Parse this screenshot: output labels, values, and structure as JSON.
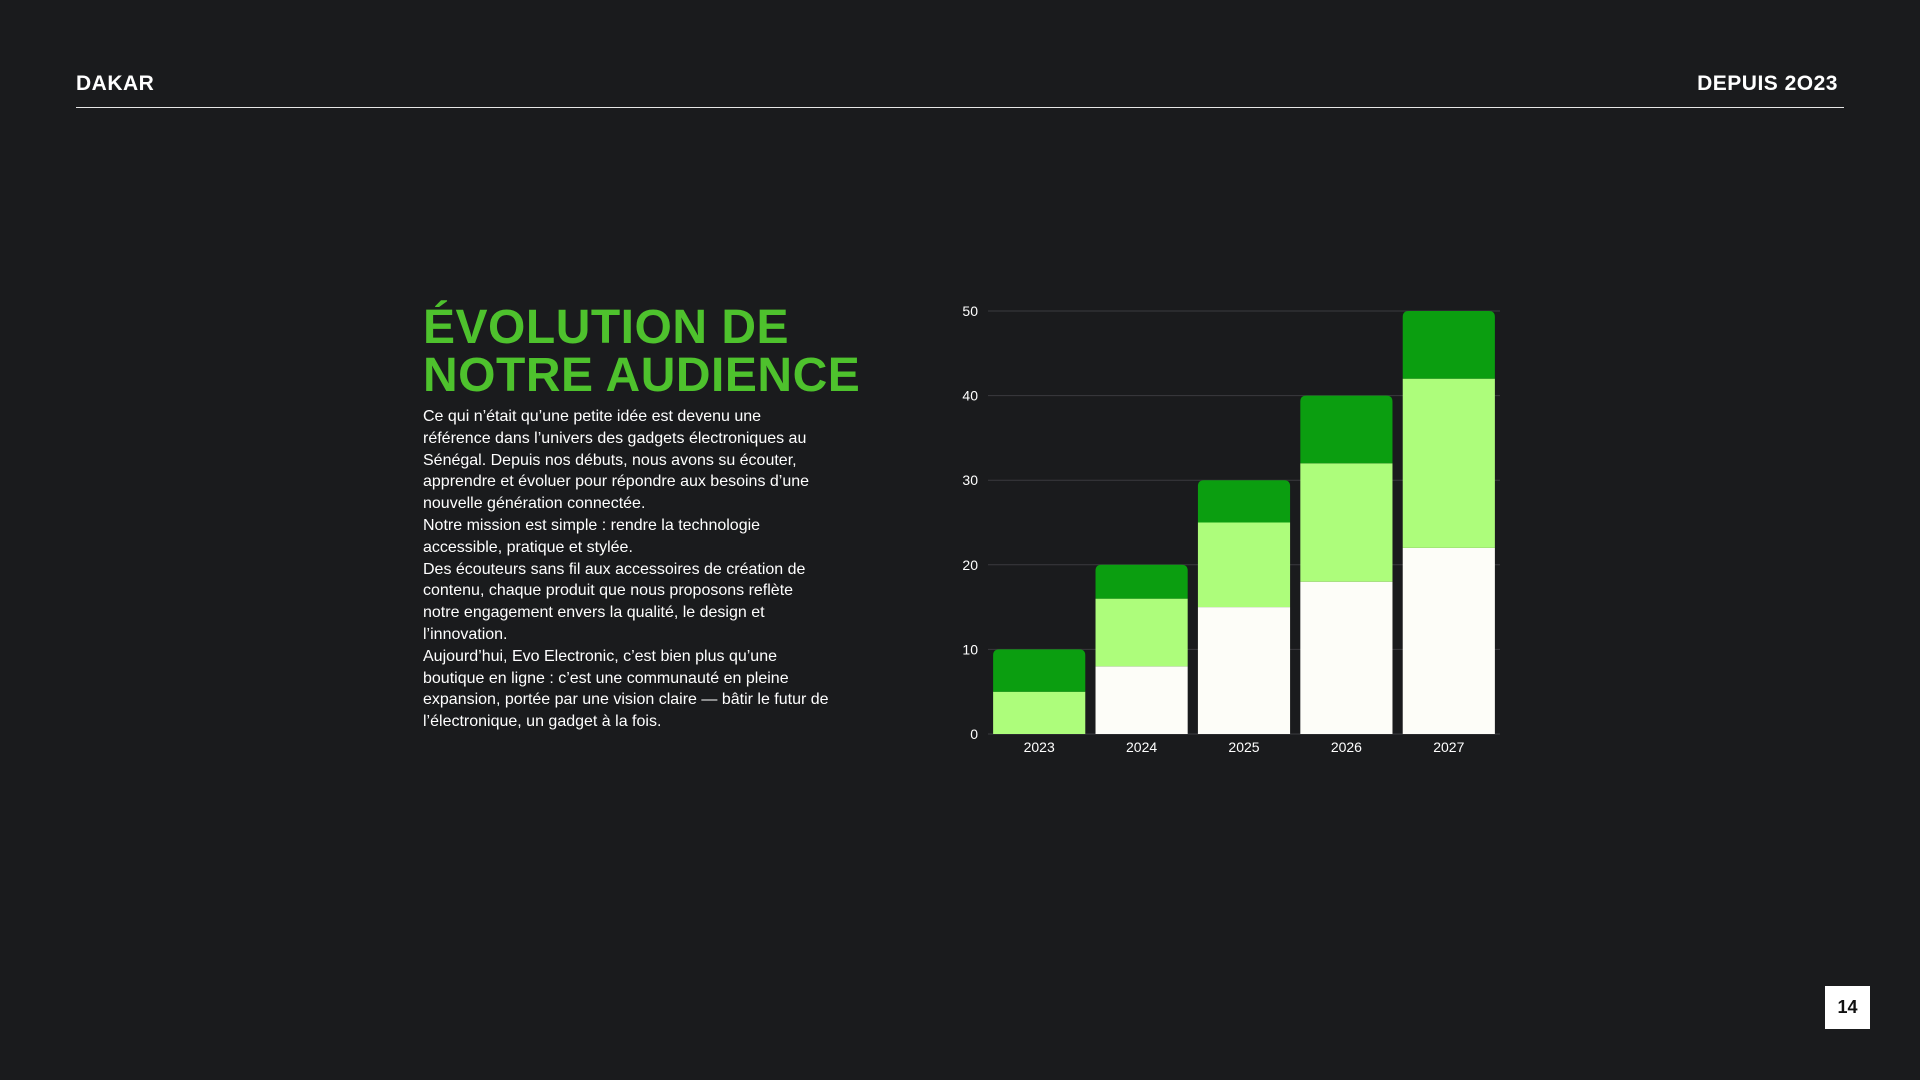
{
  "header": {
    "left": "DAKAR",
    "right": "DEPUIS 2O23"
  },
  "title": {
    "line1": "ÉVOLUTION DE",
    "line2": "NOTRE AUDIENCE"
  },
  "body": {
    "paragraphs": [
      "Ce qui n’était qu’une petite idée est devenu une référence dans l’univers des gadgets électroniques au Sénégal. Depuis nos débuts, nous avons su écouter, apprendre et évoluer pour répondre aux besoins d’une nouvelle génération connectée.",
      "Notre mission est simple : rendre la technologie accessible, pratique et stylée.",
      " Des écouteurs sans fil aux accessoires de création de contenu, chaque produit que nous proposons reflète notre engagement envers la qualité, le design et l’innovation.",
      "Aujourd’hui, Evo Electronic, c’est bien plus qu’une boutique en ligne : c’est une communauté en pleine expansion, portée par une vision claire — bâtir le futur de l’électronique, un gadget à la fois."
    ]
  },
  "page_number": "14",
  "colors": {
    "background": "#1a1b1d",
    "accent": "#4ec22d",
    "series_bottom": "#fdfdf8",
    "series_middle": "#adfd7b",
    "series_top": "#0b9e10"
  },
  "chart_data": {
    "type": "bar",
    "stacked": true,
    "categories": [
      "2023",
      "2024",
      "2025",
      "2026",
      "2027"
    ],
    "series": [
      {
        "values": [
          0,
          8,
          15,
          18,
          22
        ]
      },
      {
        "values": [
          5,
          8,
          10,
          14,
          20
        ]
      },
      {
        "values": [
          5,
          4,
          5,
          8,
          8
        ]
      }
    ],
    "title": "",
    "xlabel": "",
    "ylabel": "",
    "ylim": [
      0,
      50
    ],
    "yticks": [
      0,
      10,
      20,
      30,
      40,
      50
    ],
    "grid": true,
    "legend": "none"
  }
}
